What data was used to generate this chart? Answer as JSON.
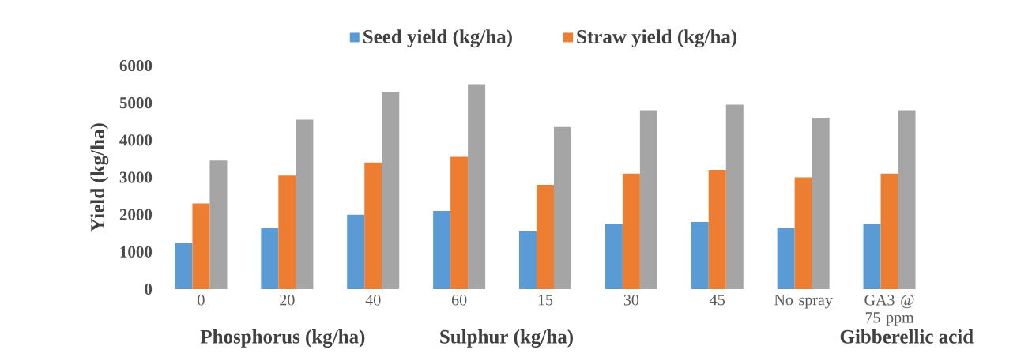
{
  "chart_data": {
    "type": "bar",
    "ylabel": "Yield (kg/ha)",
    "categories": [
      "0",
      "20",
      "40",
      "60",
      "15",
      "30",
      "45",
      "No spray",
      "GA3 @ 75 ppm"
    ],
    "series": [
      {
        "name": "Seed yield (kg/ha)",
        "color": "#5b9bd5",
        "values": [
          1250,
          1650,
          2000,
          2100,
          1550,
          1750,
          1800,
          1650,
          1750
        ]
      },
      {
        "name": "Straw yield (kg/ha)",
        "color": "#ed7d31",
        "values": [
          2300,
          3050,
          3400,
          3550,
          2800,
          3100,
          3200,
          3000,
          3100
        ]
      },
      {
        "color": "#a5a5a5",
        "values": [
          3450,
          4550,
          5300,
          5500,
          4350,
          4800,
          4950,
          4600,
          4800
        ]
      }
    ],
    "ylim": [
      0,
      6000
    ],
    "yticks": [
      0,
      1000,
      2000,
      3000,
      4000,
      5000,
      6000
    ],
    "grid": false,
    "legend": "top",
    "annotations": [
      "Phosphorus (kg/ha)",
      "Sulphur (kg/ha)",
      "Gibberellic acid"
    ]
  }
}
